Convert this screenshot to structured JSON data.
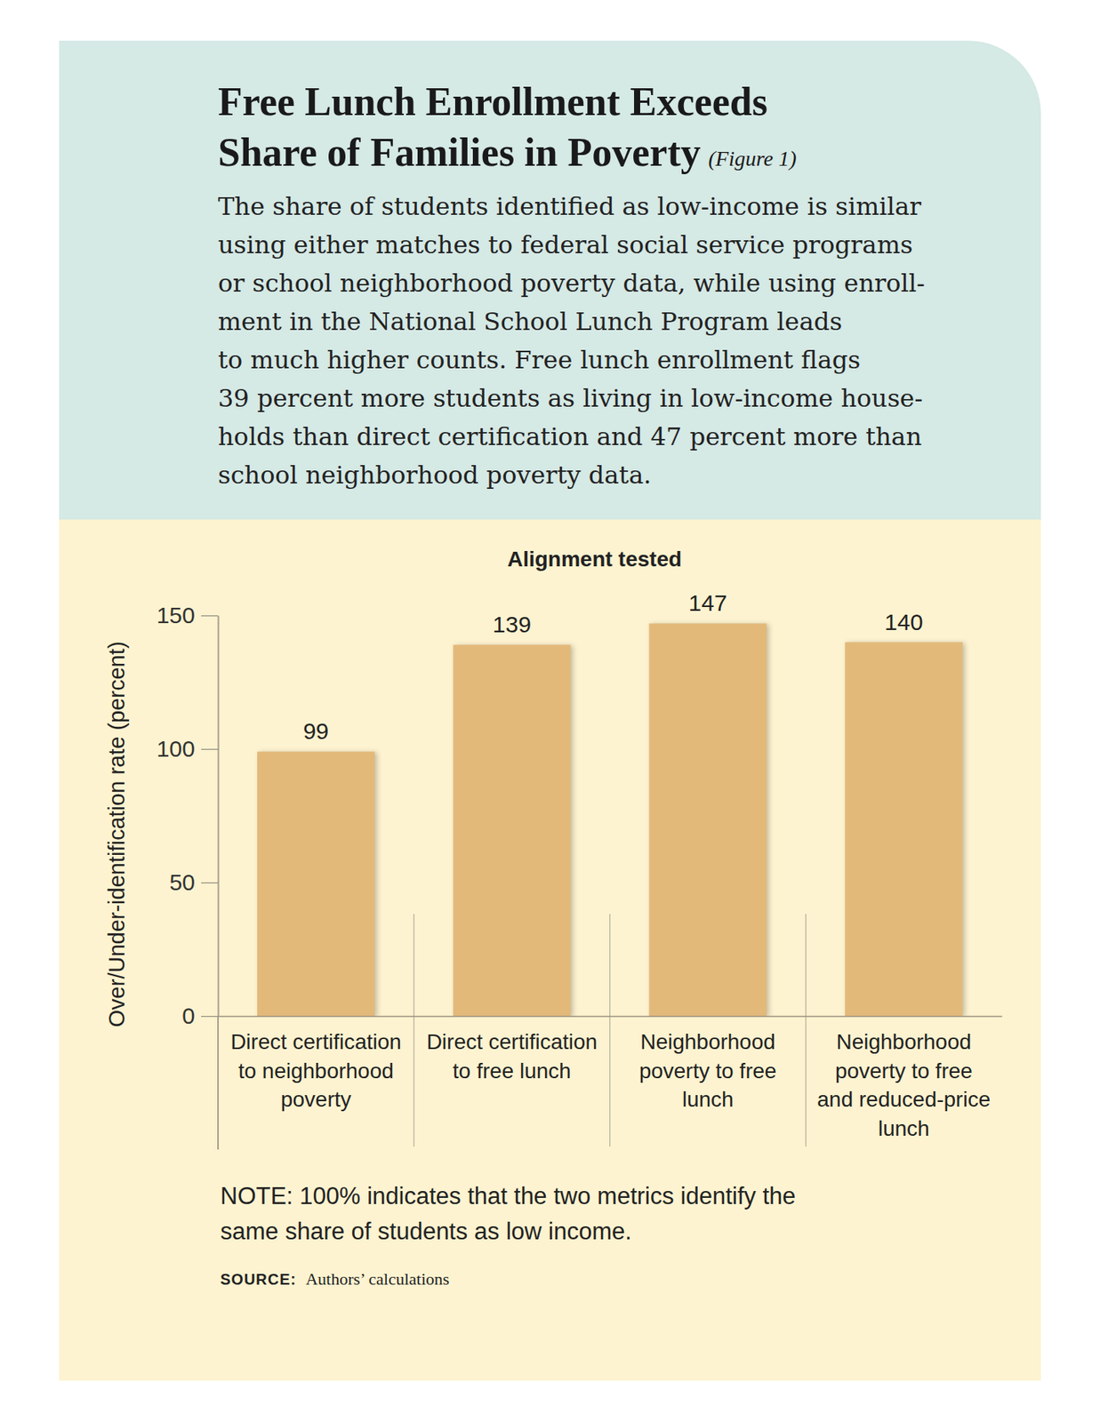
{
  "chart_data": {
    "type": "bar",
    "title": [
      "Free Lunch Enrollment Exceeds",
      "Share of Families in Poverty"
    ],
    "figure_label": "(Figure 1)",
    "subtitle": [
      "The share of students identified as low-income is similar",
      "using either matches to federal social service programs",
      "or school neighborhood poverty data, while using enroll-",
      "ment in the National School Lunch Program leads",
      "to much higher counts. Free lunch enrollment flags",
      "39 percent more students as living in low-income house-",
      "holds than direct certification and 47 percent more than",
      "school neighborhood poverty data."
    ],
    "x_label": "Alignment tested",
    "y_label": "Over/Under-identification rate (percent)",
    "categories": [
      "Direct certification to neighborhood poverty",
      "Direct certification to free lunch",
      "Neighborhood poverty to free lunch",
      "Neighborhood poverty to free and reduced-price lunch"
    ],
    "values": [
      99,
      139,
      147,
      140
    ],
    "color": "#e3b97a",
    "ylim": [
      0,
      150
    ],
    "yticks": [
      0,
      50,
      100,
      150
    ],
    "grid": false,
    "data_labels": true,
    "note": [
      "NOTE: 100% indicates that the two metrics identify the",
      "same share of students as low income."
    ],
    "source_label": "SOURCE:",
    "source": "Authors’ calculations"
  }
}
